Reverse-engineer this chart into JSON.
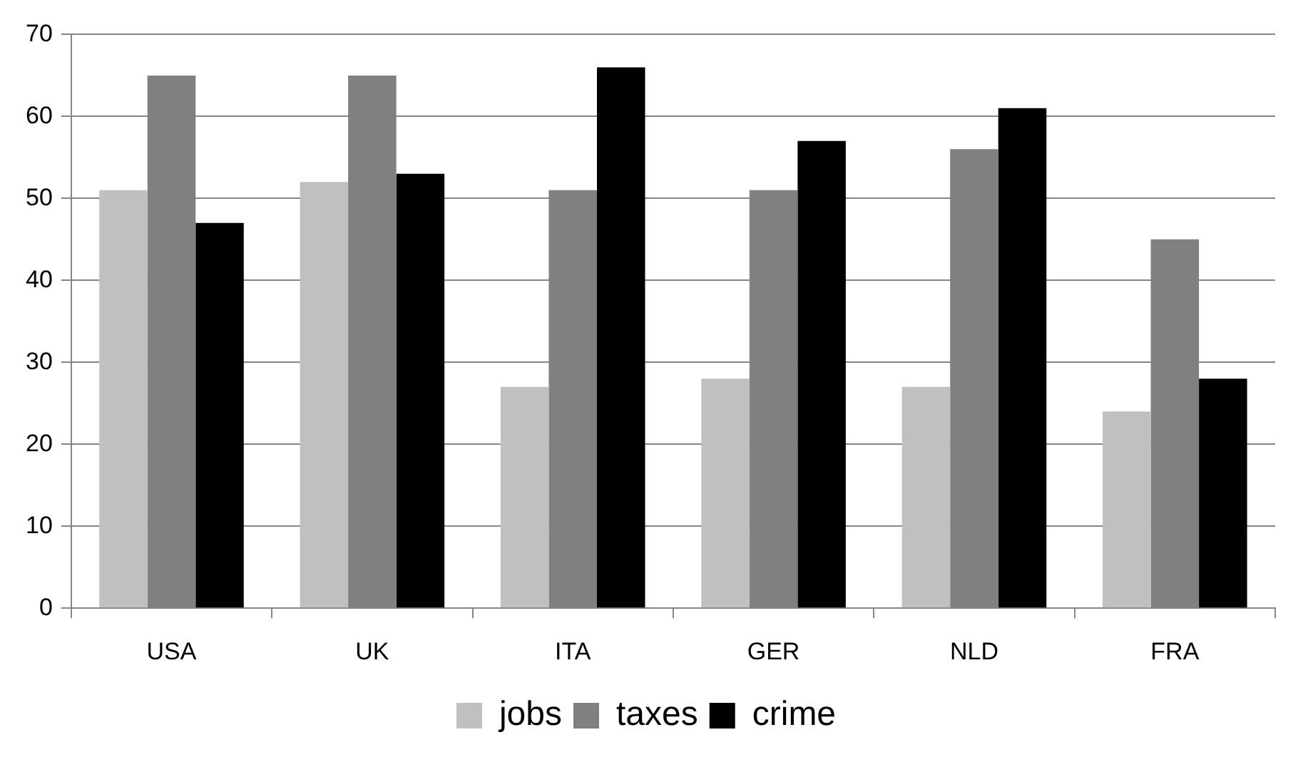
{
  "chart_data": {
    "type": "bar",
    "categories": [
      "USA",
      "UK",
      "ITA",
      "GER",
      "NLD",
      "FRA"
    ],
    "series": [
      {
        "name": "jobs",
        "color": "#c0c0c0",
        "values": [
          51,
          52,
          27,
          28,
          27,
          24
        ]
      },
      {
        "name": "taxes",
        "color": "#808080",
        "values": [
          65,
          65,
          51,
          51,
          56,
          45
        ]
      },
      {
        "name": "crime",
        "color": "#000000",
        "values": [
          47,
          53,
          66,
          57,
          61,
          28
        ]
      }
    ],
    "ylim": [
      0,
      70
    ],
    "yticks": [
      0,
      10,
      20,
      30,
      40,
      50,
      60,
      70
    ],
    "grid": "y",
    "legend": "bottom"
  }
}
